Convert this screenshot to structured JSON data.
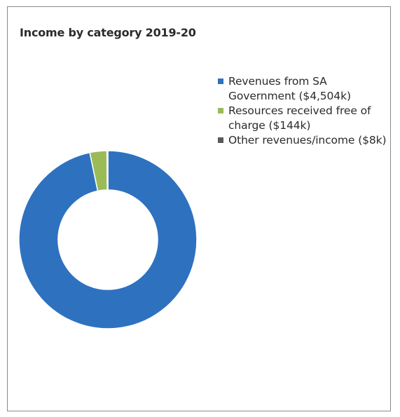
{
  "chart_data": {
    "type": "pie",
    "variant": "donut",
    "title": "Income by category 2019-20",
    "categories": [
      "Revenues from SA Government ($4,504k)",
      "Resources received free of charge ($144k)",
      "Other revenues/income ($8k)"
    ],
    "values": [
      4504,
      144,
      8
    ],
    "unit": "$k",
    "colors": [
      "#2e72bf",
      "#9bbb59",
      "#595959"
    ],
    "legend_position": "right"
  }
}
